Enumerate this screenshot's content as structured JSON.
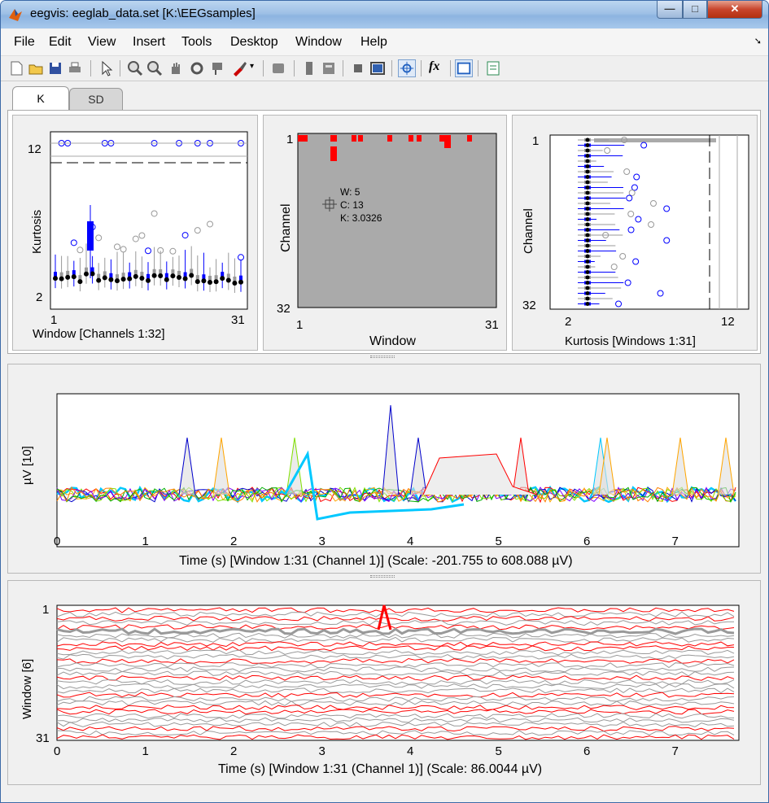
{
  "window": {
    "title": "eegvis: eeglab_data.set [K:\\EEGsamples]",
    "minimize_icon": "minimize-icon",
    "maximize_icon": "maximize-icon",
    "close_icon": "close-icon"
  },
  "menu": [
    "File",
    "Edit",
    "View",
    "Insert",
    "Tools",
    "Desktop",
    "Window",
    "Help"
  ],
  "toolbar": {
    "icons": [
      "new-figure-icon",
      "open-icon",
      "save-icon",
      "print-icon",
      "pointer-icon",
      "zoom-in-icon",
      "zoom-out-icon",
      "pan-icon",
      "rotate-icon",
      "data-cursor-icon",
      "brush-icon",
      "link-icon",
      "colorbar-icon",
      "legend-icon",
      "hide-plot-tools-icon",
      "show-plot-tools-icon",
      "select-icon",
      "fx-icon",
      "dock-icon",
      "property-editor-icon"
    ],
    "fx_label": "fx"
  },
  "tabs": [
    {
      "label": "K",
      "active": true
    },
    {
      "label": "SD",
      "active": false
    }
  ],
  "colors": {
    "blue": "#0000ff",
    "gray": "#999999",
    "red": "#ff0000",
    "background_gray": "#aaaaaa"
  },
  "charts": {
    "kurtosis_box": {
      "ylabel": "Kurtosis",
      "xlabel": "Window [Channels 1:32]",
      "xticks": [
        "1",
        "31"
      ],
      "yticks": [
        "12",
        "2"
      ]
    },
    "heatmap": {
      "ylabel": "Channel",
      "xlabel": "Window",
      "xticks": [
        "1",
        "31"
      ],
      "yticks": [
        "1",
        "32"
      ],
      "cursor": {
        "w": "W: 5",
        "c": "C: 13",
        "k": "K: 3.0326"
      }
    },
    "channel_box": {
      "ylabel": "Channel",
      "xlabel": "Kurtosis [Windows 1:31]",
      "xticks": [
        "2",
        "12"
      ],
      "yticks": [
        "1",
        "32"
      ]
    },
    "signal_plot": {
      "ylabel": "µV [10]",
      "xlabel": "Time (s) [Window 1:31 (Channel 1)] (Scale: -201.755 to 608.088 µV)",
      "xticks": [
        "0",
        "1",
        "2",
        "3",
        "4",
        "5",
        "6",
        "7"
      ]
    },
    "stacked_plot": {
      "ylabel": "Window [6]",
      "xlabel": "Time (s) [Window 1:31 (Channel 1)] (Scale: 86.0044 µV)",
      "xticks": [
        "0",
        "1",
        "2",
        "3",
        "4",
        "5",
        "6",
        "7"
      ],
      "yticks": [
        "1",
        "31"
      ]
    }
  }
}
